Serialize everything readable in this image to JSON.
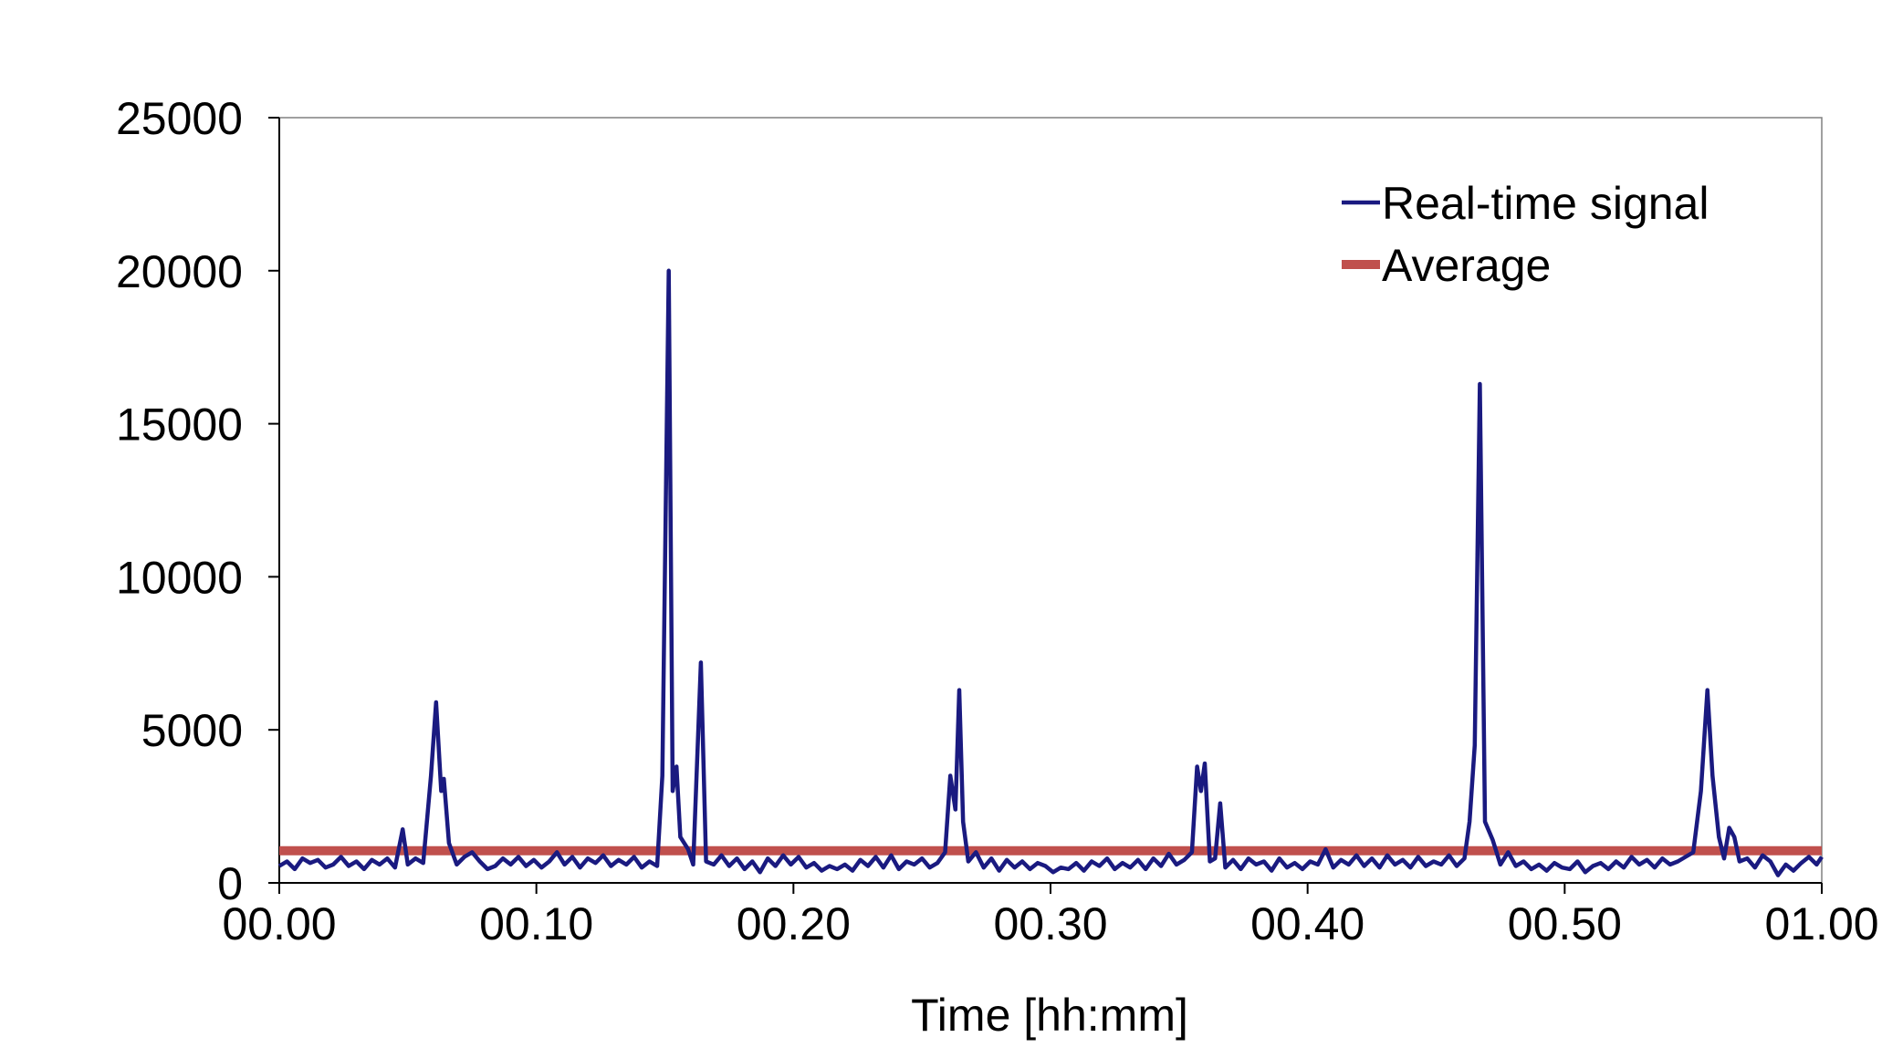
{
  "chart_data": {
    "type": "line",
    "title": "",
    "xlabel": "Time [hh:mm]",
    "ylabel": "",
    "x_range": [
      0,
      60
    ],
    "ylim": [
      0,
      25000
    ],
    "x_ticks": [
      {
        "value": 0,
        "label": "00.00"
      },
      {
        "value": 10,
        "label": "00.10"
      },
      {
        "value": 20,
        "label": "00.20"
      },
      {
        "value": 30,
        "label": "00.30"
      },
      {
        "value": 40,
        "label": "00.40"
      },
      {
        "value": 50,
        "label": "00.50"
      },
      {
        "value": 60,
        "label": "01.00"
      }
    ],
    "y_ticks": [
      {
        "value": 0,
        "label": "0"
      },
      {
        "value": 5000,
        "label": "5000"
      },
      {
        "value": 10000,
        "label": "10000"
      },
      {
        "value": 15000,
        "label": "15000"
      },
      {
        "value": 20000,
        "label": "20000"
      },
      {
        "value": 25000,
        "label": "25000"
      }
    ],
    "grid": false,
    "legend_position": "top-right",
    "series": [
      {
        "name": "Real-time signal",
        "color": "#1a1a80",
        "points": [
          [
            0.0,
            550
          ],
          [
            0.3,
            700
          ],
          [
            0.6,
            450
          ],
          [
            0.9,
            800
          ],
          [
            1.2,
            650
          ],
          [
            1.5,
            750
          ],
          [
            1.8,
            500
          ],
          [
            2.1,
            600
          ],
          [
            2.4,
            850
          ],
          [
            2.7,
            550
          ],
          [
            3.0,
            700
          ],
          [
            3.3,
            450
          ],
          [
            3.6,
            750
          ],
          [
            3.9,
            600
          ],
          [
            4.2,
            800
          ],
          [
            4.5,
            500
          ],
          [
            4.8,
            1750
          ],
          [
            5.0,
            600
          ],
          [
            5.3,
            800
          ],
          [
            5.6,
            650
          ],
          [
            5.9,
            3500
          ],
          [
            6.1,
            5900
          ],
          [
            6.3,
            3000
          ],
          [
            6.4,
            3400
          ],
          [
            6.6,
            1300
          ],
          [
            6.9,
            600
          ],
          [
            7.2,
            850
          ],
          [
            7.5,
            1000
          ],
          [
            7.8,
            700
          ],
          [
            8.1,
            450
          ],
          [
            8.4,
            550
          ],
          [
            8.7,
            800
          ],
          [
            9.0,
            600
          ],
          [
            9.3,
            850
          ],
          [
            9.6,
            550
          ],
          [
            9.9,
            750
          ],
          [
            10.2,
            500
          ],
          [
            10.5,
            700
          ],
          [
            10.8,
            1000
          ],
          [
            11.1,
            600
          ],
          [
            11.4,
            850
          ],
          [
            11.7,
            500
          ],
          [
            12.0,
            800
          ],
          [
            12.3,
            650
          ],
          [
            12.6,
            900
          ],
          [
            12.9,
            550
          ],
          [
            13.2,
            750
          ],
          [
            13.5,
            600
          ],
          [
            13.8,
            850
          ],
          [
            14.1,
            500
          ],
          [
            14.4,
            700
          ],
          [
            14.7,
            550
          ],
          [
            14.9,
            3500
          ],
          [
            15.15,
            20000
          ],
          [
            15.3,
            3000
          ],
          [
            15.45,
            3800
          ],
          [
            15.6,
            1500
          ],
          [
            15.9,
            1100
          ],
          [
            16.1,
            600
          ],
          [
            16.4,
            7200
          ],
          [
            16.6,
            700
          ],
          [
            16.9,
            600
          ],
          [
            17.2,
            900
          ],
          [
            17.5,
            550
          ],
          [
            17.8,
            800
          ],
          [
            18.1,
            450
          ],
          [
            18.4,
            700
          ],
          [
            18.7,
            350
          ],
          [
            19.0,
            800
          ],
          [
            19.3,
            550
          ],
          [
            19.6,
            900
          ],
          [
            19.9,
            600
          ],
          [
            20.2,
            850
          ],
          [
            20.5,
            500
          ],
          [
            20.8,
            650
          ],
          [
            21.1,
            400
          ],
          [
            21.4,
            550
          ],
          [
            21.7,
            450
          ],
          [
            22.0,
            600
          ],
          [
            22.3,
            400
          ],
          [
            22.6,
            750
          ],
          [
            22.9,
            550
          ],
          [
            23.2,
            850
          ],
          [
            23.5,
            500
          ],
          [
            23.8,
            900
          ],
          [
            24.1,
            450
          ],
          [
            24.4,
            700
          ],
          [
            24.7,
            600
          ],
          [
            25.0,
            800
          ],
          [
            25.3,
            500
          ],
          [
            25.6,
            650
          ],
          [
            25.9,
            1000
          ],
          [
            26.1,
            3500
          ],
          [
            26.3,
            2400
          ],
          [
            26.45,
            6300
          ],
          [
            26.6,
            2000
          ],
          [
            26.8,
            700
          ],
          [
            27.1,
            1000
          ],
          [
            27.4,
            500
          ],
          [
            27.7,
            800
          ],
          [
            28.0,
            400
          ],
          [
            28.3,
            750
          ],
          [
            28.6,
            500
          ],
          [
            28.9,
            700
          ],
          [
            29.2,
            450
          ],
          [
            29.5,
            650
          ],
          [
            29.8,
            550
          ],
          [
            30.1,
            350
          ],
          [
            30.4,
            500
          ],
          [
            30.7,
            450
          ],
          [
            31.0,
            650
          ],
          [
            31.3,
            400
          ],
          [
            31.6,
            700
          ],
          [
            31.9,
            550
          ],
          [
            32.2,
            800
          ],
          [
            32.5,
            450
          ],
          [
            32.8,
            650
          ],
          [
            33.1,
            500
          ],
          [
            33.4,
            750
          ],
          [
            33.7,
            450
          ],
          [
            34.0,
            800
          ],
          [
            34.3,
            550
          ],
          [
            34.6,
            950
          ],
          [
            34.9,
            600
          ],
          [
            35.2,
            750
          ],
          [
            35.5,
            1000
          ],
          [
            35.7,
            3800
          ],
          [
            35.85,
            3000
          ],
          [
            36.0,
            3900
          ],
          [
            36.2,
            700
          ],
          [
            36.4,
            800
          ],
          [
            36.6,
            2600
          ],
          [
            36.8,
            500
          ],
          [
            37.1,
            750
          ],
          [
            37.4,
            450
          ],
          [
            37.7,
            800
          ],
          [
            38.0,
            600
          ],
          [
            38.3,
            700
          ],
          [
            38.6,
            400
          ],
          [
            38.9,
            800
          ],
          [
            39.2,
            500
          ],
          [
            39.5,
            650
          ],
          [
            39.8,
            450
          ],
          [
            40.1,
            700
          ],
          [
            40.4,
            600
          ],
          [
            40.7,
            1100
          ],
          [
            41.0,
            500
          ],
          [
            41.3,
            750
          ],
          [
            41.6,
            600
          ],
          [
            41.9,
            900
          ],
          [
            42.2,
            550
          ],
          [
            42.5,
            800
          ],
          [
            42.8,
            500
          ],
          [
            43.1,
            900
          ],
          [
            43.4,
            600
          ],
          [
            43.7,
            750
          ],
          [
            44.0,
            500
          ],
          [
            44.3,
            850
          ],
          [
            44.6,
            550
          ],
          [
            44.9,
            700
          ],
          [
            45.2,
            600
          ],
          [
            45.5,
            900
          ],
          [
            45.8,
            550
          ],
          [
            46.1,
            800
          ],
          [
            46.3,
            2000
          ],
          [
            46.5,
            4500
          ],
          [
            46.7,
            16300
          ],
          [
            46.9,
            2000
          ],
          [
            47.2,
            1400
          ],
          [
            47.5,
            600
          ],
          [
            47.8,
            1000
          ],
          [
            48.1,
            550
          ],
          [
            48.4,
            700
          ],
          [
            48.7,
            450
          ],
          [
            49.0,
            600
          ],
          [
            49.3,
            400
          ],
          [
            49.6,
            650
          ],
          [
            49.9,
            500
          ],
          [
            50.2,
            450
          ],
          [
            50.5,
            700
          ],
          [
            50.8,
            350
          ],
          [
            51.1,
            550
          ],
          [
            51.4,
            650
          ],
          [
            51.7,
            450
          ],
          [
            52.0,
            700
          ],
          [
            52.3,
            500
          ],
          [
            52.6,
            850
          ],
          [
            52.9,
            600
          ],
          [
            53.2,
            750
          ],
          [
            53.5,
            500
          ],
          [
            53.8,
            800
          ],
          [
            54.1,
            600
          ],
          [
            54.4,
            700
          ],
          [
            54.7,
            850
          ],
          [
            55.0,
            1000
          ],
          [
            55.3,
            3000
          ],
          [
            55.55,
            6300
          ],
          [
            55.75,
            3500
          ],
          [
            56.0,
            1500
          ],
          [
            56.2,
            800
          ],
          [
            56.4,
            1800
          ],
          [
            56.6,
            1500
          ],
          [
            56.8,
            700
          ],
          [
            57.1,
            800
          ],
          [
            57.4,
            500
          ],
          [
            57.7,
            900
          ],
          [
            58.0,
            700
          ],
          [
            58.3,
            250
          ],
          [
            58.6,
            600
          ],
          [
            58.9,
            400
          ],
          [
            59.2,
            650
          ],
          [
            59.5,
            850
          ],
          [
            59.8,
            600
          ],
          [
            60.0,
            850
          ]
        ]
      },
      {
        "name": "Average",
        "color": "#c0504d",
        "points": [
          [
            0,
            1050
          ],
          [
            60,
            1050
          ]
        ]
      }
    ]
  }
}
